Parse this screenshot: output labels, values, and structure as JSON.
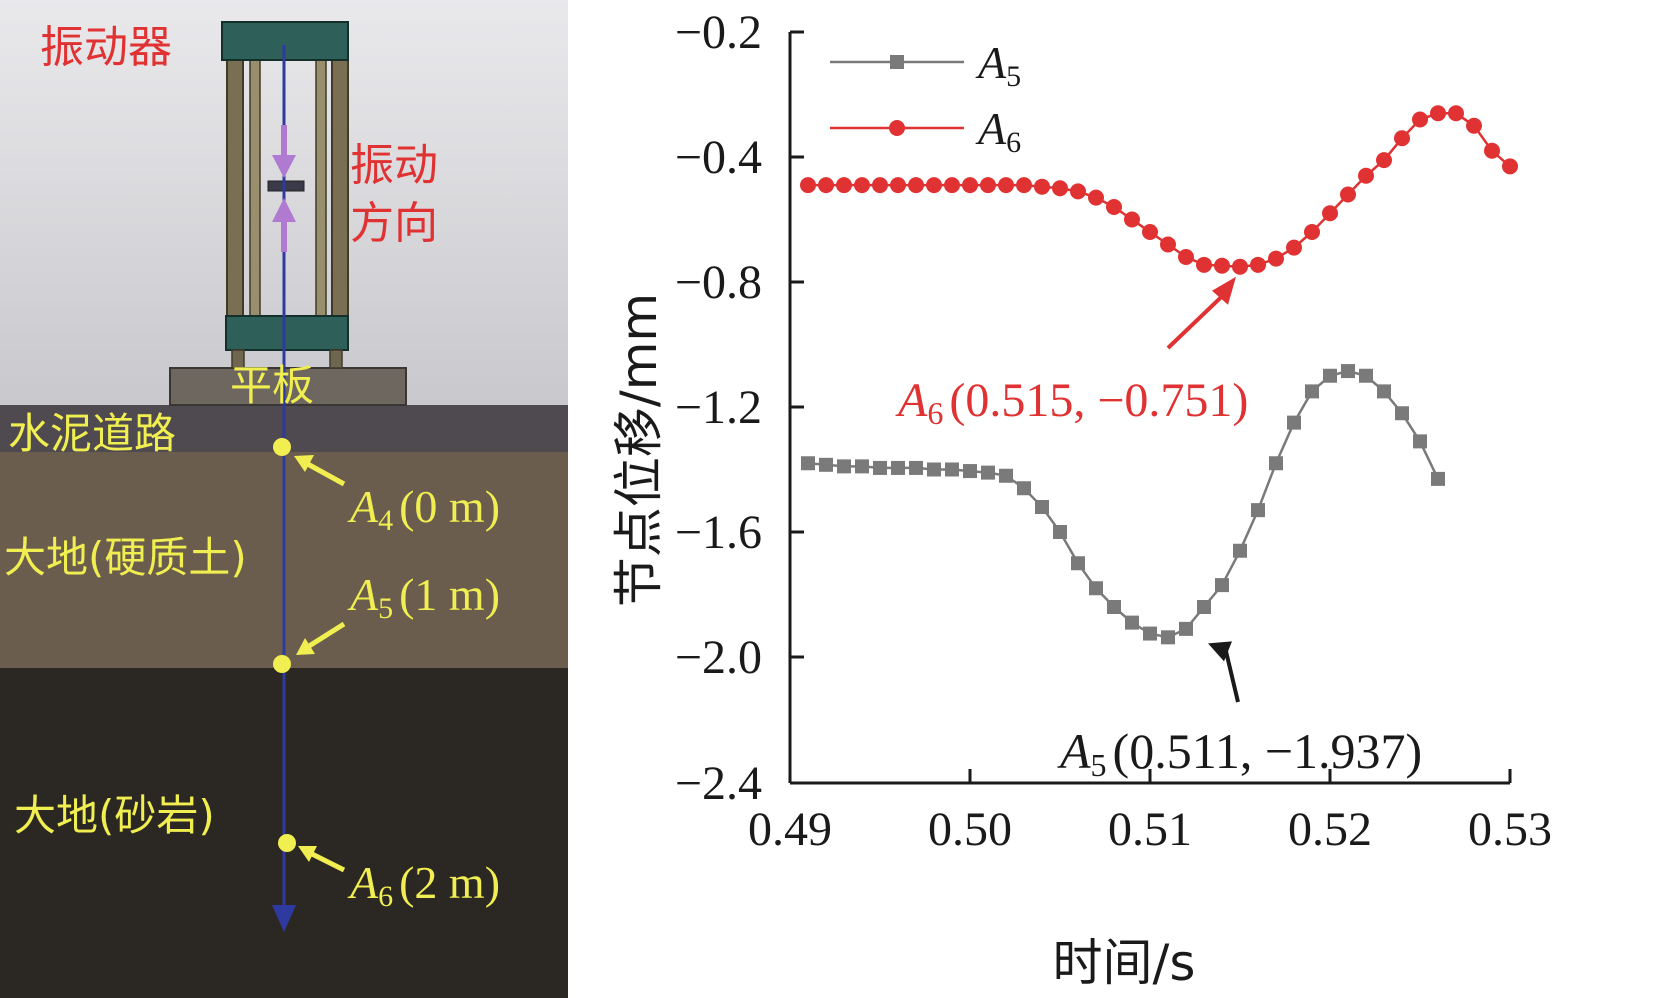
{
  "scene": {
    "labels": {
      "vibrator": "振动器",
      "vibration_dir_1": "振动",
      "vibration_dir_2": "方向",
      "plate": "平板",
      "road": "水泥道路",
      "hard_soil": "大地(硬质土)",
      "sandstone": "大地(砂岩)"
    },
    "points": [
      {
        "sym": "A",
        "sub": "4",
        "depth": "(0 m)"
      },
      {
        "sym": "A",
        "sub": "5",
        "depth": "(1 m)"
      },
      {
        "sym": "A",
        "sub": "6",
        "depth": "(2 m)"
      }
    ],
    "colors": {
      "label_red": "#e03232",
      "point_yellow": "#f0ee50",
      "axis_blue": "#2f3aa0",
      "vibrator_green": "#2e5f58",
      "road": "#4f4a4f",
      "hard_soil": "#6b5d4e",
      "sandstone": "#2b2723"
    }
  },
  "chart_data": {
    "type": "line",
    "xlabel": "时间/s",
    "ylabel": "节点位移/mm",
    "xlim": [
      0.49,
      0.53
    ],
    "ylim": [
      -2.4,
      -0.2
    ],
    "xticks": [
      0.49,
      0.5,
      0.51,
      0.52,
      0.53
    ],
    "yticks": [
      -0.2,
      -0.4,
      -0.8,
      -1.2,
      -1.6,
      -2.0,
      -2.4
    ],
    "xtick_labels": [
      "0.49",
      "0.50",
      "0.51",
      "0.52",
      "0.53"
    ],
    "ytick_labels": [
      "−0.2",
      "−0.4",
      "−0.8",
      "−1.2",
      "−1.6",
      "−2.0",
      "−2.4"
    ],
    "legend_position": "top-left",
    "series": [
      {
        "name": "A5",
        "name_sym": "A",
        "name_sub": "5",
        "color": "#7a7a7a",
        "marker": "square",
        "x": [
          0.491,
          0.492,
          0.493,
          0.494,
          0.495,
          0.496,
          0.497,
          0.498,
          0.499,
          0.5,
          0.501,
          0.502,
          0.503,
          0.504,
          0.505,
          0.506,
          0.507,
          0.508,
          0.509,
          0.51,
          0.511,
          0.512,
          0.513,
          0.514,
          0.515,
          0.516,
          0.517,
          0.518,
          0.519,
          0.52,
          0.521,
          0.522,
          0.523,
          0.524,
          0.525,
          0.526
        ],
        "values": [
          -1.38,
          -1.385,
          -1.39,
          -1.39,
          -1.395,
          -1.395,
          -1.395,
          -1.4,
          -1.4,
          -1.405,
          -1.41,
          -1.42,
          -1.46,
          -1.52,
          -1.6,
          -1.7,
          -1.78,
          -1.84,
          -1.89,
          -1.925,
          -1.937,
          -1.91,
          -1.84,
          -1.77,
          -1.66,
          -1.53,
          -1.38,
          -1.25,
          -1.15,
          -1.1,
          -1.085,
          -1.1,
          -1.15,
          -1.22,
          -1.31,
          -1.43
        ]
      },
      {
        "name": "A6",
        "name_sym": "A",
        "name_sub": "6",
        "color": "#e03232",
        "marker": "circle",
        "x": [
          0.491,
          0.492,
          0.493,
          0.494,
          0.495,
          0.496,
          0.497,
          0.498,
          0.499,
          0.5,
          0.501,
          0.502,
          0.503,
          0.504,
          0.505,
          0.506,
          0.507,
          0.508,
          0.509,
          0.51,
          0.511,
          0.512,
          0.513,
          0.514,
          0.515,
          0.516,
          0.517,
          0.518,
          0.519,
          0.52,
          0.521,
          0.522,
          0.523,
          0.524,
          0.525,
          0.526,
          0.527,
          0.528,
          0.529,
          0.53
        ],
        "values": [
          -0.49,
          -0.49,
          -0.49,
          -0.49,
          -0.49,
          -0.49,
          -0.49,
          -0.49,
          -0.49,
          -0.49,
          -0.49,
          -0.49,
          -0.49,
          -0.495,
          -0.5,
          -0.51,
          -0.53,
          -0.56,
          -0.6,
          -0.64,
          -0.68,
          -0.72,
          -0.745,
          -0.748,
          -0.751,
          -0.745,
          -0.725,
          -0.69,
          -0.64,
          -0.58,
          -0.52,
          -0.46,
          -0.41,
          -0.37,
          -0.34,
          -0.33,
          -0.33,
          -0.35,
          -0.39,
          -0.43
        ]
      }
    ],
    "annotations": [
      {
        "series": "A6",
        "sym": "A",
        "sub": "6",
        "text": "(0.515, −0.751)",
        "x": 0.515,
        "y": -0.751,
        "color": "#e03232"
      },
      {
        "series": "A5",
        "sym": "A",
        "sub": "5",
        "text": "(0.511, −1.937)",
        "x": 0.511,
        "y": -1.937,
        "color": "#1a1a1a"
      }
    ]
  }
}
